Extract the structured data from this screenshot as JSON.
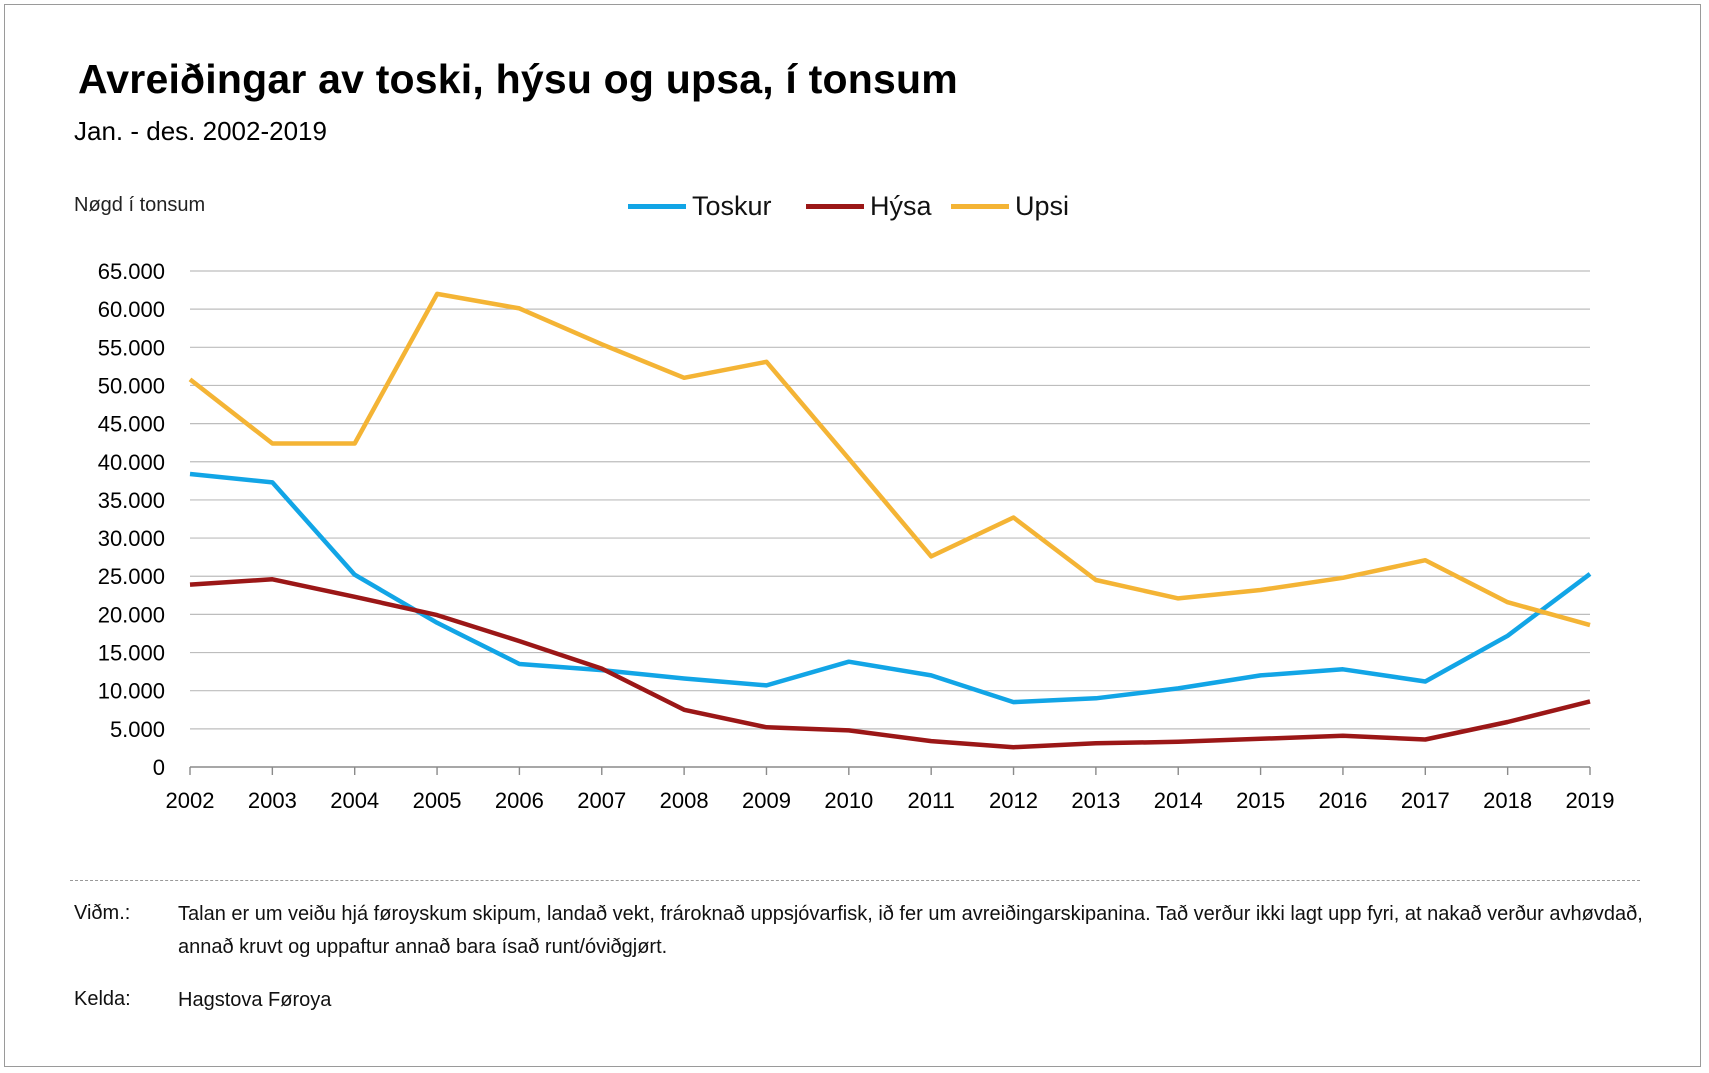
{
  "header": {
    "title": "Avreiðingar av toski, hýsu og upsa, í tonsum",
    "subtitle": "Jan. - des. 2002-2019",
    "y_axis_label": "Nøgd í tonsum"
  },
  "legend": [
    {
      "name": "Toskur",
      "color": "#12a5e6"
    },
    {
      "name": "Hýsa",
      "color": "#9b1717"
    },
    {
      "name": "Upsi",
      "color": "#f4b435"
    }
  ],
  "chart_data": {
    "type": "line",
    "title": "Avreiðingar av toski, hýsu og upsa, í tonsum",
    "subtitle": "Jan. - des. 2002-2019",
    "xlabel": "",
    "ylabel": "Nøgd í tonsum",
    "x": [
      "2002",
      "2003",
      "2004",
      "2005",
      "2006",
      "2007",
      "2008",
      "2009",
      "2010",
      "2011",
      "2012",
      "2013",
      "2014",
      "2015",
      "2016",
      "2017",
      "2018",
      "2019"
    ],
    "ylim": [
      0,
      65000
    ],
    "yticks": [
      0,
      5000,
      10000,
      15000,
      20000,
      25000,
      30000,
      35000,
      40000,
      45000,
      50000,
      55000,
      60000,
      65000
    ],
    "ytick_labels": [
      "0",
      "5.000",
      "10.000",
      "15.000",
      "20.000",
      "25.000",
      "30.000",
      "35.000",
      "40.000",
      "45.000",
      "50.000",
      "55.000",
      "60.000",
      "65.000"
    ],
    "grid": "horizontal",
    "legend_position": "top-center",
    "series": [
      {
        "name": "Toskur",
        "color": "#12a5e6",
        "values": [
          38400,
          37300,
          25200,
          18900,
          13500,
          12700,
          11600,
          10700,
          13800,
          12000,
          8500,
          9000,
          10300,
          12000,
          12800,
          11200,
          17200,
          25300
        ]
      },
      {
        "name": "Hýsa",
        "color": "#9b1717",
        "values": [
          23900,
          24600,
          22300,
          19900,
          16500,
          12900,
          7500,
          5200,
          4800,
          3400,
          2600,
          3100,
          3300,
          3700,
          4100,
          3600,
          5900,
          8600
        ]
      },
      {
        "name": "Upsi",
        "color": "#f4b435",
        "values": [
          50800,
          42400,
          42400,
          62000,
          60100,
          55400,
          51000,
          53100,
          40400,
          27600,
          32700,
          24500,
          22100,
          23200,
          24800,
          27100,
          21600,
          18600
        ]
      }
    ]
  },
  "notes": {
    "remark_label": "Viðm.:",
    "remark_text": "Talan er um veiðu hjá føroyskum skipum, landað vekt, frároknað uppsjóvarfisk, ið fer um avreiðingarskipanina. Tað verður ikki lagt upp fyri, at nakað verður avhøvdað, annað kruvt og uppaftur annað bara ísað runt/óviðgjørt.",
    "source_label": "Kelda:",
    "source_text": "Hagstova Føroya"
  }
}
